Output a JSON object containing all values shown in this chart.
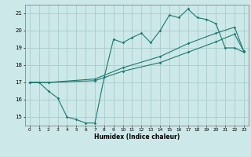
{
  "xlabel": "Humidex (Indice chaleur)",
  "bg_color": "#cce8e8",
  "grid_color": "#aacccc",
  "line_color": "#1a7a6e",
  "xlim": [
    -0.5,
    23.5
  ],
  "ylim": [
    14.5,
    21.5
  ],
  "yticks": [
    15,
    16,
    17,
    18,
    19,
    20,
    21
  ],
  "xticks": [
    0,
    1,
    2,
    3,
    4,
    5,
    6,
    7,
    8,
    9,
    10,
    11,
    12,
    13,
    14,
    15,
    16,
    17,
    18,
    19,
    20,
    21,
    22,
    23
  ],
  "line1_x": [
    0,
    1,
    2,
    3,
    4,
    5,
    6,
    7,
    8,
    9,
    10,
    11,
    12,
    13,
    14,
    15,
    16,
    17,
    18,
    19,
    20,
    21,
    22,
    23
  ],
  "line1_y": [
    17.0,
    17.0,
    16.5,
    16.1,
    15.0,
    14.85,
    14.65,
    14.65,
    17.3,
    19.5,
    19.3,
    19.6,
    19.85,
    19.3,
    20.0,
    20.9,
    20.75,
    21.25,
    20.75,
    20.65,
    20.4,
    19.0,
    19.0,
    18.75
  ],
  "line2_x": [
    0,
    2,
    7,
    10,
    14,
    17,
    20,
    22,
    23
  ],
  "line2_y": [
    17.0,
    17.0,
    17.2,
    17.85,
    18.5,
    19.25,
    19.85,
    20.2,
    18.8
  ],
  "line3_x": [
    0,
    2,
    7,
    10,
    14,
    17,
    20,
    22,
    23
  ],
  "line3_y": [
    17.0,
    17.0,
    17.1,
    17.65,
    18.15,
    18.75,
    19.35,
    19.8,
    18.8
  ]
}
